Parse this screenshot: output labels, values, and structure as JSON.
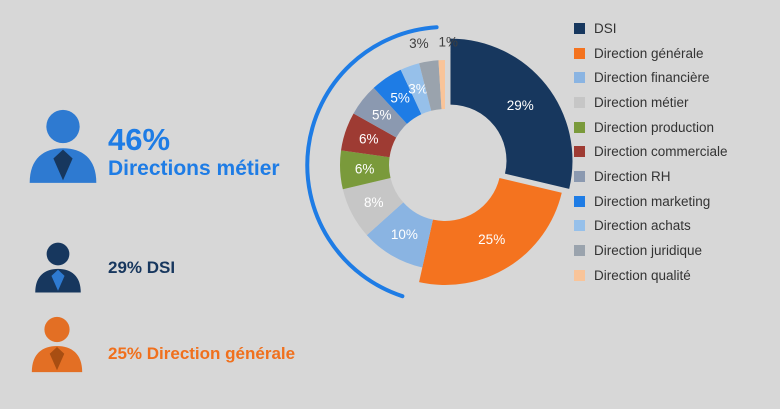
{
  "page": {
    "background": "#d7d7d7"
  },
  "left_panel": {
    "primary": {
      "value": "46%",
      "label": "Directions métier",
      "color": "#1e7ce5",
      "icon": "person-icon",
      "icon_color": "#2e7ad1",
      "icon_accent": "#17375e"
    },
    "secondary": {
      "label": "29% DSI",
      "color": "#17375e",
      "icon": "person-icon",
      "icon_color": "#17375e",
      "icon_accent": "#2e7ad1"
    },
    "tertiary": {
      "label": "25% Direction générale",
      "color": "#f0701d",
      "icon": "person-icon",
      "icon_color": "#e36f24",
      "icon_accent": "#a84e12"
    }
  },
  "chart_data": {
    "type": "pie",
    "subtype": "donut",
    "title": "",
    "direction": "clockwise",
    "start_angle_deg": 0,
    "legend_position": "right",
    "exploded_slice": "DSI",
    "categories": [
      "DSI",
      "Direction générale",
      "Direction financière",
      "Direction métier",
      "Direction production",
      "Direction commerciale",
      "Direction RH",
      "Direction marketing",
      "Direction achats",
      "Direction juridique",
      "Direction qualité"
    ],
    "values": [
      29,
      25,
      10,
      8,
      6,
      6,
      5,
      5,
      3,
      3,
      1
    ],
    "slice_labels": [
      "29%",
      "25%",
      "10%",
      "8%",
      "6%",
      "6%",
      "5%",
      "5%",
      "3%",
      "3%",
      "1%"
    ],
    "colors": [
      "#17375e",
      "#f4731f",
      "#8ab4e2",
      "#c6c6c6",
      "#7a9a3b",
      "#9e3b33",
      "#8b99b0",
      "#1e7ce5",
      "#96c0ea",
      "#9aa3ad",
      "#f9c499"
    ],
    "inside_label_color": "#ffffff",
    "outside_label_indices": [
      9,
      10
    ],
    "outside_label_color": "#3f3f3f",
    "group_arc": {
      "color": "#1e7ce5",
      "covers": "Directions métier",
      "covers_value": "46%"
    }
  }
}
